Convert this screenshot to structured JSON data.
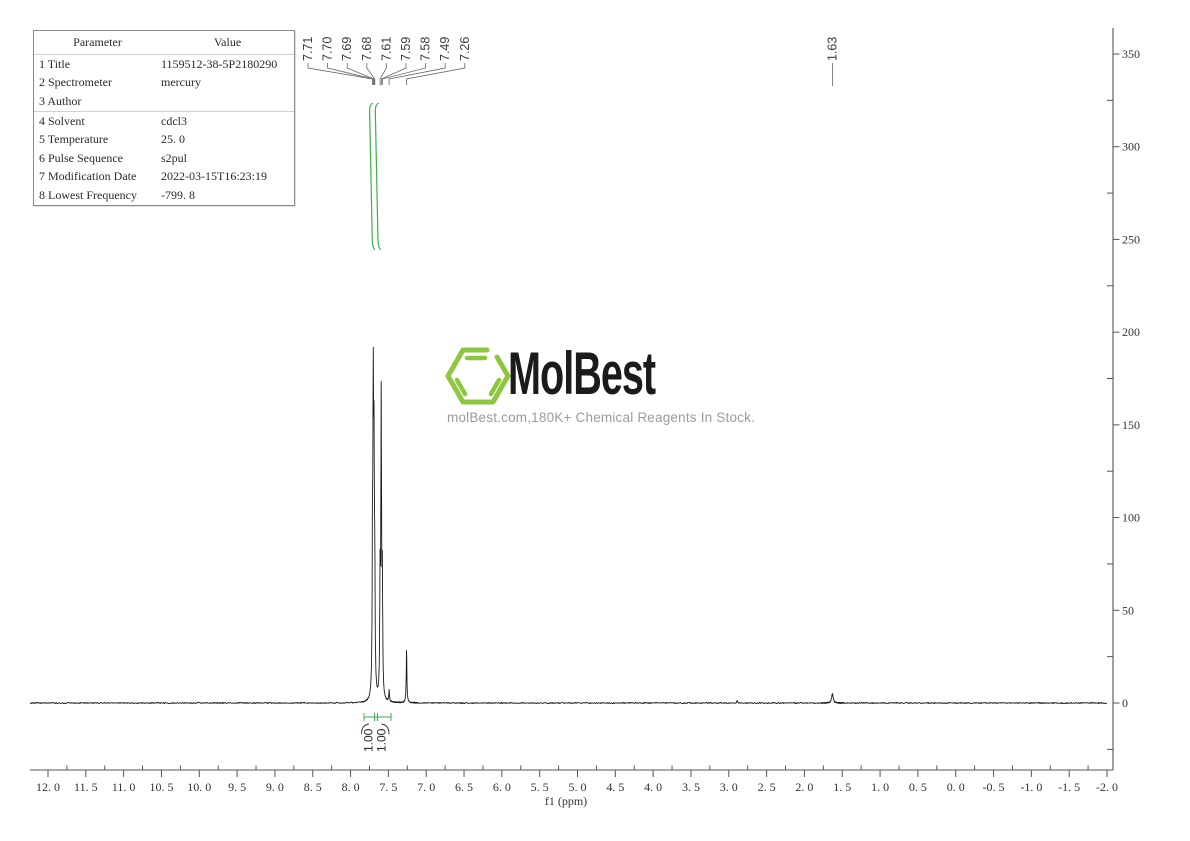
{
  "page": {
    "background": "#ffffff"
  },
  "parameter_table": {
    "headers": [
      "Parameter",
      "Value"
    ],
    "rows": [
      {
        "label": "1 Title",
        "value": "1159512-38-5P2180290",
        "group_start": false
      },
      {
        "label": "2 Spectrometer",
        "value": "mercury",
        "group_start": false
      },
      {
        "label": "3 Author",
        "value": "",
        "group_start": false
      },
      {
        "label": "4 Solvent",
        "value": "cdcl3",
        "group_start": true
      },
      {
        "label": "5 Temperature",
        "value": "25. 0",
        "group_start": false
      },
      {
        "label": "6 Pulse Sequence",
        "value": "s2pul",
        "group_start": false
      },
      {
        "label": "7 Modification Date",
        "value": "2022-03-15T16:23:19",
        "group_start": false
      },
      {
        "label": "8 Lowest Frequency",
        "value": "-799. 8",
        "group_start": false
      }
    ]
  },
  "watermark": {
    "brand": "MolBest",
    "tagline": "molBest.com,180K+ Chemical Reagents In Stock.",
    "logo_color": "#8dc63f",
    "text_color": "#1b1b1b",
    "tagline_color": "#9b9b9b"
  },
  "chart_data": {
    "type": "line",
    "title": "1H NMR spectrum",
    "xlabel": "f1 (ppm)",
    "x_axis": {
      "min": -2.0,
      "max": 12.0,
      "major_step": 0.5,
      "minor_step": 0.25,
      "tick_labels": [
        "12. 0",
        "11. 5",
        "11. 0",
        "10. 5",
        "10. 0",
        "9. 5",
        "9. 0",
        "8. 5",
        "8. 0",
        "7. 5",
        "7. 0",
        "6. 5",
        "6. 0",
        "5. 5",
        "5. 0",
        "4. 5",
        "4. 0",
        "3. 5",
        "3. 0",
        "2. 5",
        "2. 0",
        "1. 5",
        "1. 0",
        "0. 5",
        "0. 0",
        "-0. 5",
        "-1. 0",
        "-1. 5",
        "-2. 0"
      ]
    },
    "y_axis": {
      "min": -35,
      "max": 365,
      "major_step": 50,
      "minor_step": 25,
      "tick_labels": [
        "350",
        "300",
        "250",
        "200",
        "150",
        "100",
        "50",
        "0"
      ]
    },
    "peak_labels": [
      {
        "text": "7.71",
        "ppm": 7.71
      },
      {
        "text": "7.70",
        "ppm": 7.7
      },
      {
        "text": "7.69",
        "ppm": 7.69
      },
      {
        "text": "7.68",
        "ppm": 7.68
      },
      {
        "text": "7.61",
        "ppm": 7.61
      },
      {
        "text": "7.59",
        "ppm": 7.59
      },
      {
        "text": "7.58",
        "ppm": 7.58
      },
      {
        "text": "7.49",
        "ppm": 7.49
      },
      {
        "text": "7.26",
        "ppm": 7.26
      }
    ],
    "isolated_peak_label": {
      "text": "1.63",
      "ppm": 1.63
    },
    "peaks": [
      {
        "ppm": 7.71,
        "height": 70
      },
      {
        "ppm": 7.7,
        "height": 145
      },
      {
        "ppm": 7.69,
        "height": 110
      },
      {
        "ppm": 7.68,
        "height": 55
      },
      {
        "ppm": 7.61,
        "height": 60
      },
      {
        "ppm": 7.595,
        "height": 158
      },
      {
        "ppm": 7.58,
        "height": 60
      },
      {
        "ppm": 7.49,
        "height": 6
      },
      {
        "ppm": 7.26,
        "height": 28
      },
      {
        "ppm": 2.89,
        "height": 1.5
      },
      {
        "ppm": 1.63,
        "height": 5,
        "width_ppm": 0.012
      }
    ],
    "default_peak_width_ppm": 0.0055,
    "integrals": [
      {
        "value": "1.00",
        "ppm": 7.695
      },
      {
        "value": "1.00",
        "ppm": 7.59
      }
    ],
    "colors": {
      "trace": "#1c1c1c",
      "axis": "#555555",
      "integral": "#3fae49",
      "label_text": "#3c3c3c"
    }
  }
}
